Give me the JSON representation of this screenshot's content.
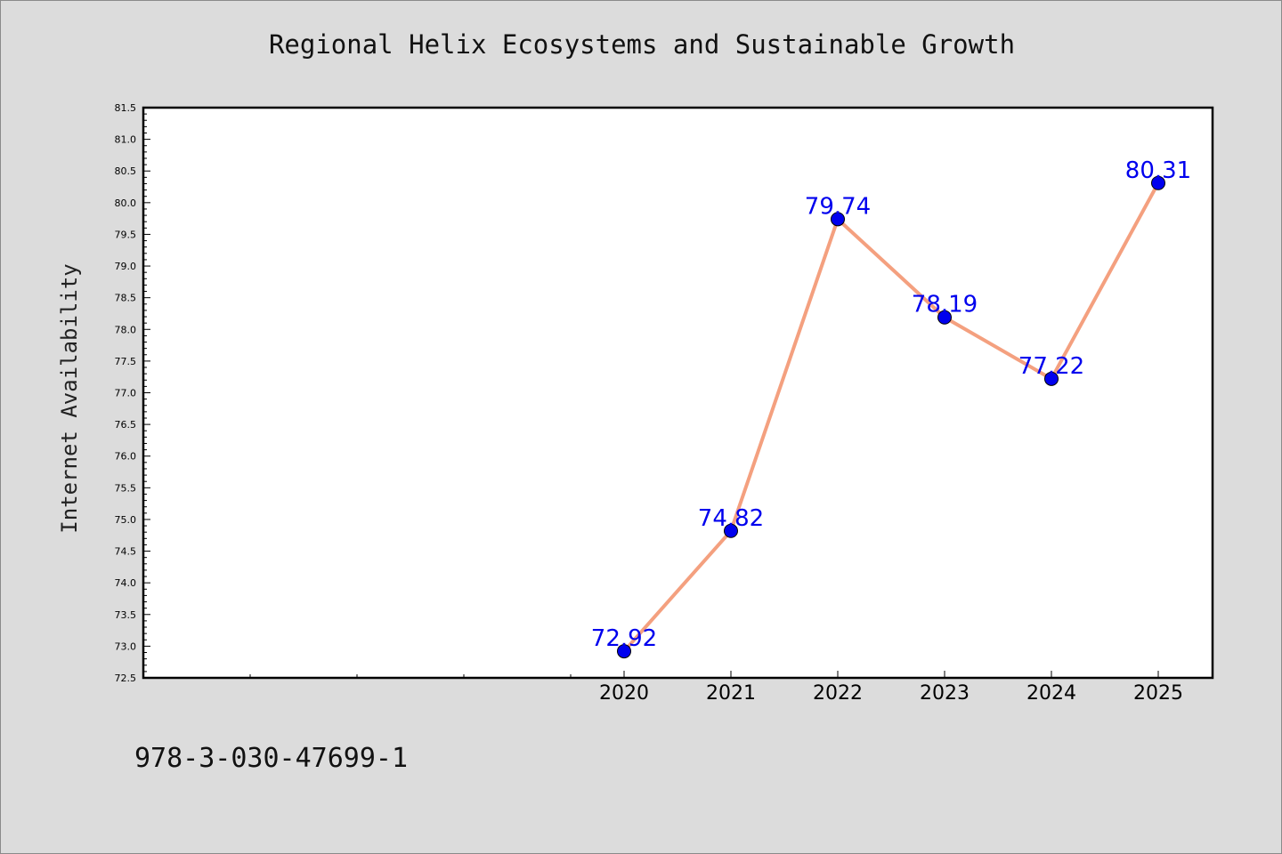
{
  "chart_data": {
    "type": "line",
    "title": "Regional Helix Ecosystems and Sustainable Growth",
    "xlabel": "",
    "ylabel": "Internet Availability",
    "x": [
      "2020",
      "2021",
      "2022",
      "2023",
      "2024",
      "2025"
    ],
    "values": [
      72.92,
      74.82,
      79.74,
      78.19,
      77.22,
      80.31
    ],
    "data_labels": [
      "72.92",
      "74.82",
      "79.74",
      "78.19",
      "77.22",
      "80.31"
    ],
    "ylim": [
      72.5,
      81.5
    ],
    "yticks": [
      "72.5",
      "73.0",
      "73.5",
      "74.0",
      "74.5",
      "75.0",
      "75.5",
      "76.0",
      "76.5",
      "77.0",
      "77.5",
      "78.0",
      "78.5",
      "79.0",
      "79.5",
      "80.0",
      "80.5",
      "81.0",
      "81.5"
    ],
    "grid": false,
    "line_color": "#f4a07f",
    "marker_color": "#0000ee",
    "label_color": "#0000ee"
  },
  "footer": {
    "identifier": "978-3-030-47699-1"
  }
}
